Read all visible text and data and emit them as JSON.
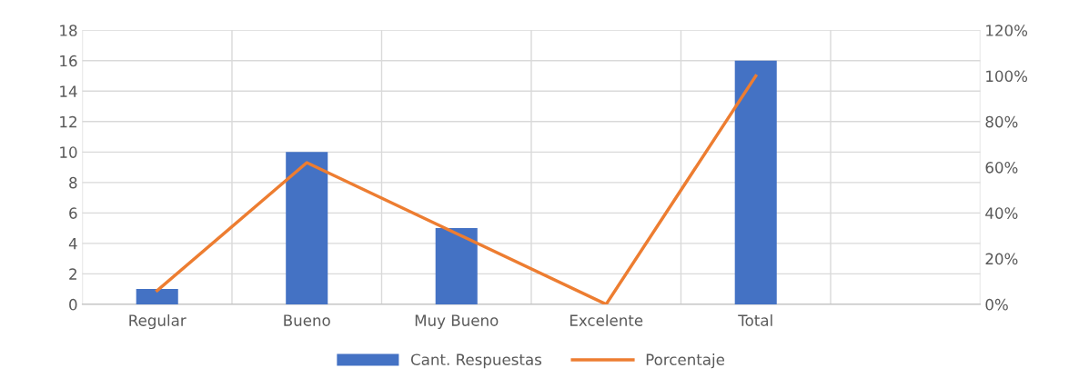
{
  "chart_data": {
    "type": "bar",
    "categories": [
      "Regular",
      "Bueno",
      "Muy Bueno",
      "Excelente",
      "Total",
      null
    ],
    "series": [
      {
        "name": "Cant. Respuestas",
        "color": "#4472c4",
        "values": [
          1,
          10,
          5,
          0,
          16,
          null
        ]
      },
      {
        "name": "Porcentaje",
        "type": "line",
        "axis": "y2",
        "color": "#ed7d31",
        "values": [
          6,
          62,
          31,
          0,
          100,
          null
        ]
      }
    ],
    "ylim": [
      0,
      18
    ],
    "yticks": [
      0,
      2,
      4,
      6,
      8,
      10,
      12,
      14,
      16,
      18
    ],
    "y2lim": [
      0,
      120
    ],
    "y2ticks": [
      {
        "value": 0,
        "label": "0%"
      },
      {
        "value": 20,
        "label": "20%"
      },
      {
        "value": 40,
        "label": "40%"
      },
      {
        "value": 60,
        "label": "60%"
      },
      {
        "value": 80,
        "label": "80%"
      },
      {
        "value": 100,
        "label": "100%"
      },
      {
        "value": 120,
        "label": "120%"
      }
    ],
    "grid": true,
    "legend": "bottom"
  }
}
